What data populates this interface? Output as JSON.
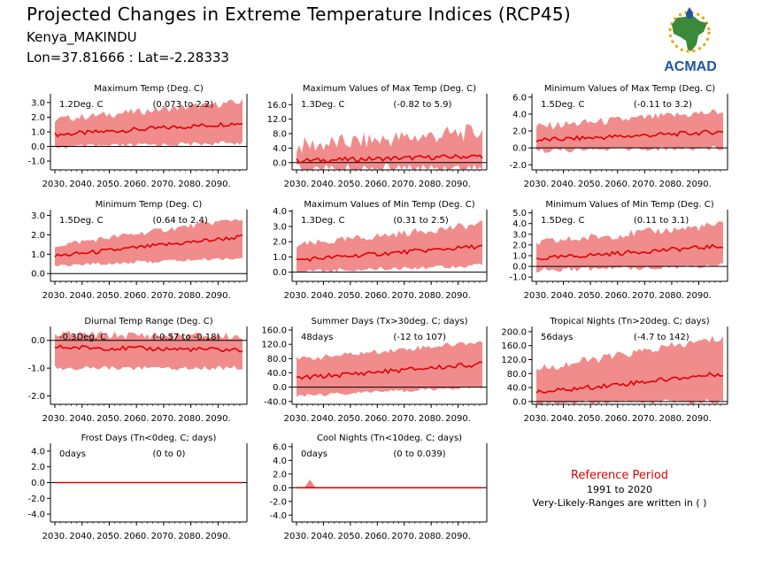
{
  "header": {
    "title": "Projected Changes in Extreme Temperature Indices (RCP45)",
    "location": "Kenya_MAKINDU",
    "coords": "Lon=37.81666 : Lat=-2.28333"
  },
  "logo": {
    "text": "ACMAD"
  },
  "reference": {
    "title": "Reference Period",
    "years": "1991 to 2020",
    "note": "Very-Likely-Ranges are written in ( )"
  },
  "colors": {
    "band": "#f08080",
    "line": "#e00000",
    "zero_line": "#000000",
    "logo_text": "#1e56a0",
    "logo_africa": "#3a8a3a",
    "logo_sun": "#f0a000"
  },
  "chart_data": [
    {
      "type": "area",
      "title": "Maximum Temp (Deg. C)",
      "value": "1.2Deg. C",
      "range": "(0.073 to 2.2)",
      "x": [
        2030,
        2099
      ],
      "xticks": [
        "2030.",
        "2040.",
        "2050.",
        "2060.",
        "2070.",
        "2080.",
        "2090."
      ],
      "yticks": [
        3.0,
        2.0,
        1.0,
        0.0,
        -1.0
      ],
      "ylim": [
        -1.6,
        3.6
      ],
      "median_start": 0.8,
      "median_end": 1.6,
      "band_low": [
        0.1,
        0.4
      ],
      "band_high": [
        1.6,
        2.8
      ],
      "amp": 0.5
    },
    {
      "type": "area",
      "title": "Maximum Values of Max Temp (Deg. C)",
      "value": "1.3Deg. C",
      "range": "(-0.82 to 5.9)",
      "x": [
        2030,
        2099
      ],
      "xticks": [
        "2030.",
        "2040.",
        "2050.",
        "2060.",
        "2070.",
        "2080.",
        "2090."
      ],
      "yticks": [
        16.0,
        12.0,
        8.0,
        4.0,
        0.0
      ],
      "ylim": [
        -2.0,
        19.0
      ],
      "median_start": 0.5,
      "median_end": 1.8,
      "band_low": [
        -0.3,
        -0.1
      ],
      "band_high": [
        2.0,
        6.0
      ],
      "amp": 5.0
    },
    {
      "type": "area",
      "title": "Minimum Values of Max Temp (Deg. C)",
      "value": "1.5Deg. C",
      "range": "(-0.11 to 3.2)",
      "x": [
        2030,
        2099
      ],
      "xticks": [
        "2030.",
        "2040.",
        "2050.",
        "2060.",
        "2070.",
        "2080.",
        "2090."
      ],
      "yticks": [
        6.0,
        4.0,
        2.0,
        0.0,
        -2.0
      ],
      "ylim": [
        -2.6,
        6.4
      ],
      "median_start": 0.9,
      "median_end": 1.9,
      "band_low": [
        0.0,
        0.3
      ],
      "band_high": [
        2.0,
        3.8
      ],
      "amp": 1.0
    },
    {
      "type": "area",
      "title": "Minimum Temp (Deg. C)",
      "value": "1.5Deg. C",
      "range": "(0.64 to 2.4)",
      "x": [
        2030,
        2099
      ],
      "xticks": [
        "2030.",
        "2040.",
        "2050.",
        "2060.",
        "2070.",
        "2080.",
        "2090."
      ],
      "yticks": [
        3.0,
        2.0,
        1.0,
        0.0
      ],
      "ylim": [
        -0.4,
        3.3
      ],
      "median_start": 0.9,
      "median_end": 1.9,
      "band_low": [
        0.5,
        0.9
      ],
      "band_high": [
        1.3,
        2.7
      ],
      "amp": 0.3
    },
    {
      "type": "area",
      "title": "Maximum Values of Min Temp (Deg. C)",
      "value": "1.3Deg. C",
      "range": "(0.31 to 2.5)",
      "x": [
        2030,
        2099
      ],
      "xticks": [
        "2030.",
        "2040.",
        "2050.",
        "2060.",
        "2070.",
        "2080.",
        "2090."
      ],
      "yticks": [
        4.0,
        3.0,
        2.0,
        1.0,
        0.0
      ],
      "ylim": [
        -0.6,
        4.1
      ],
      "median_start": 0.8,
      "median_end": 1.7,
      "band_low": [
        0.2,
        0.6
      ],
      "band_high": [
        1.5,
        2.9
      ],
      "amp": 0.5
    },
    {
      "type": "area",
      "title": "Minimum Values of Min Temp (Deg. C)",
      "value": "1.5Deg. C",
      "range": "(0.11 to 3.1)",
      "x": [
        2030,
        2099
      ],
      "xticks": [
        "2030.",
        "2040.",
        "2050.",
        "2060.",
        "2070.",
        "2080.",
        "2090."
      ],
      "yticks": [
        5.0,
        4.0,
        3.0,
        2.0,
        1.0,
        0.0,
        -1.0
      ],
      "ylim": [
        -1.4,
        5.3
      ],
      "median_start": 0.7,
      "median_end": 1.9,
      "band_low": [
        -0.1,
        0.3
      ],
      "band_high": [
        1.8,
        3.5
      ],
      "amp": 0.8
    },
    {
      "type": "area",
      "title": "Diurnal Temp Range (Deg. C)",
      "value": "-0.3Deg. C",
      "range": "(-0.57 to -0.18)",
      "x": [
        2030,
        2099
      ],
      "xticks": [
        "2030.",
        "2040.",
        "2050.",
        "2060.",
        "2070.",
        "2080.",
        "2090."
      ],
      "yticks": [
        0.0,
        -1.0,
        -2.0
      ],
      "ylim": [
        -2.3,
        0.5
      ],
      "median_start": -0.25,
      "median_end": -0.35,
      "band_low": [
        -0.9,
        -0.9
      ],
      "band_high": [
        0.05,
        0.0
      ],
      "amp": 0.3
    },
    {
      "type": "area",
      "title": "Summer Days (Tx>30deg. C; days)",
      "value": "48days",
      "range": "(-12 to 107)",
      "x": [
        2030,
        2099
      ],
      "xticks": [
        "2030.",
        "2040.",
        "2050.",
        "2060.",
        "2070.",
        "2080.",
        "2090."
      ],
      "yticks": [
        160.0,
        120.0,
        80.0,
        40.0,
        0.0,
        -40.0
      ],
      "ylim": [
        -48.0,
        170.0
      ],
      "median_start": 25.0,
      "median_end": 65.0,
      "band_low": [
        -20.0,
        5.0
      ],
      "band_high": [
        70.0,
        120.0
      ],
      "amp": 15.0
    },
    {
      "type": "area",
      "title": "Tropical Nights (Tn>20deg. C; days)",
      "value": "56days",
      "range": "(-4.7 to 142)",
      "x": [
        2030,
        2099
      ],
      "xticks": [
        "2030.",
        "2040.",
        "2050.",
        "2060.",
        "2070.",
        "2080.",
        "2090."
      ],
      "yticks": [
        200.0,
        160.0,
        120.0,
        80.0,
        40.0,
        0.0
      ],
      "ylim": [
        -8.0,
        215.0
      ],
      "median_start": 25.0,
      "median_end": 80.0,
      "band_low": [
        2.0,
        8.0
      ],
      "band_high": [
        80.0,
        170.0
      ],
      "amp": 25.0
    },
    {
      "type": "area",
      "title": "Frost Days (Tn<0deg. C; days)",
      "value": "0days",
      "range": "(0 to 0)",
      "x": [
        2030,
        2099
      ],
      "xticks": [
        "2030.",
        "2040.",
        "2050.",
        "2060.",
        "2070.",
        "2080.",
        "2090."
      ],
      "yticks": [
        4.0,
        2.0,
        0.0,
        -2.0,
        -4.0
      ],
      "ylim": [
        -5.0,
        5.0
      ],
      "median_start": 0.0,
      "median_end": 0.0,
      "band_low": [
        0.0,
        0.0
      ],
      "band_high": [
        0.0,
        0.0
      ],
      "amp": 0.0
    },
    {
      "type": "area",
      "title": "Cool Nights (Tn<10deg. C; days)",
      "value": "0days",
      "range": "(0 to 0.039)",
      "x": [
        2030,
        2099
      ],
      "xticks": [
        "2030.",
        "2040.",
        "2050.",
        "2060.",
        "2070.",
        "2080.",
        "2090."
      ],
      "yticks": [
        6.0,
        4.0,
        2.0,
        0.0,
        -2.0,
        -4.0
      ],
      "ylim": [
        -5.0,
        6.5
      ],
      "median_start": 0.0,
      "median_end": 0.0,
      "band_low": [
        0.0,
        0.0
      ],
      "band_high": [
        0.0,
        0.04
      ],
      "amp": 0.0
    }
  ]
}
